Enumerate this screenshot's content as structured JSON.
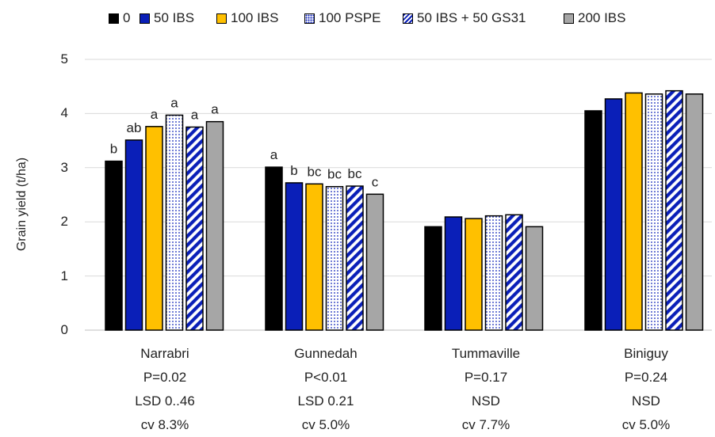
{
  "chart_data": {
    "type": "bar",
    "ylabel": "Grain yield (t/ha)",
    "xlabel": "",
    "ylim": [
      0,
      5
    ],
    "yticks": [
      "0",
      "1",
      "2",
      "3",
      "4",
      "5"
    ],
    "gridlines": true,
    "legend_position": "top",
    "categories": [
      "Narrabri",
      "Gunnedah",
      "Tummaville",
      "Biniguy"
    ],
    "category_stats": [
      [
        "P=0.02",
        "LSD 0..46",
        "cv 8.3%"
      ],
      [
        "P<0.01",
        "LSD 0.21",
        "cv 5.0%"
      ],
      [
        "P=0.17",
        "NSD",
        "cv 7.7%"
      ],
      [
        "P=0.24",
        "NSD",
        "cv 5.0%"
      ]
    ],
    "series": [
      {
        "name": "0",
        "style": "solid",
        "color": "#000000",
        "values": [
          3.12,
          3.01,
          1.91,
          4.05
        ],
        "letters": [
          "b",
          "a",
          "",
          ""
        ]
      },
      {
        "name": "50 IBS",
        "style": "solid",
        "color": "#0a1fb8",
        "values": [
          3.51,
          2.72,
          2.09,
          4.27
        ],
        "letters": [
          "ab",
          "b",
          "",
          ""
        ]
      },
      {
        "name": "100 IBS",
        "style": "solid",
        "color": "#ffc000",
        "values": [
          3.76,
          2.7,
          2.06,
          4.38
        ],
        "letters": [
          "a",
          "bc",
          "",
          ""
        ]
      },
      {
        "name": "100 PSPE",
        "style": "dots",
        "color": "#0a1fb8",
        "values": [
          3.97,
          2.65,
          2.11,
          4.36
        ],
        "letters": [
          "a",
          "bc",
          "",
          ""
        ]
      },
      {
        "name": "50 IBS + 50 GS31",
        "style": "stripes",
        "color": "#0a1fb8",
        "values": [
          3.75,
          2.66,
          2.13,
          4.42
        ],
        "letters": [
          "a",
          "bc",
          "",
          ""
        ]
      },
      {
        "name": "200 IBS",
        "style": "solid",
        "color": "#a6a6a6",
        "values": [
          3.85,
          2.51,
          1.91,
          4.36
        ],
        "letters": [
          "a",
          "c",
          "",
          ""
        ]
      }
    ]
  }
}
